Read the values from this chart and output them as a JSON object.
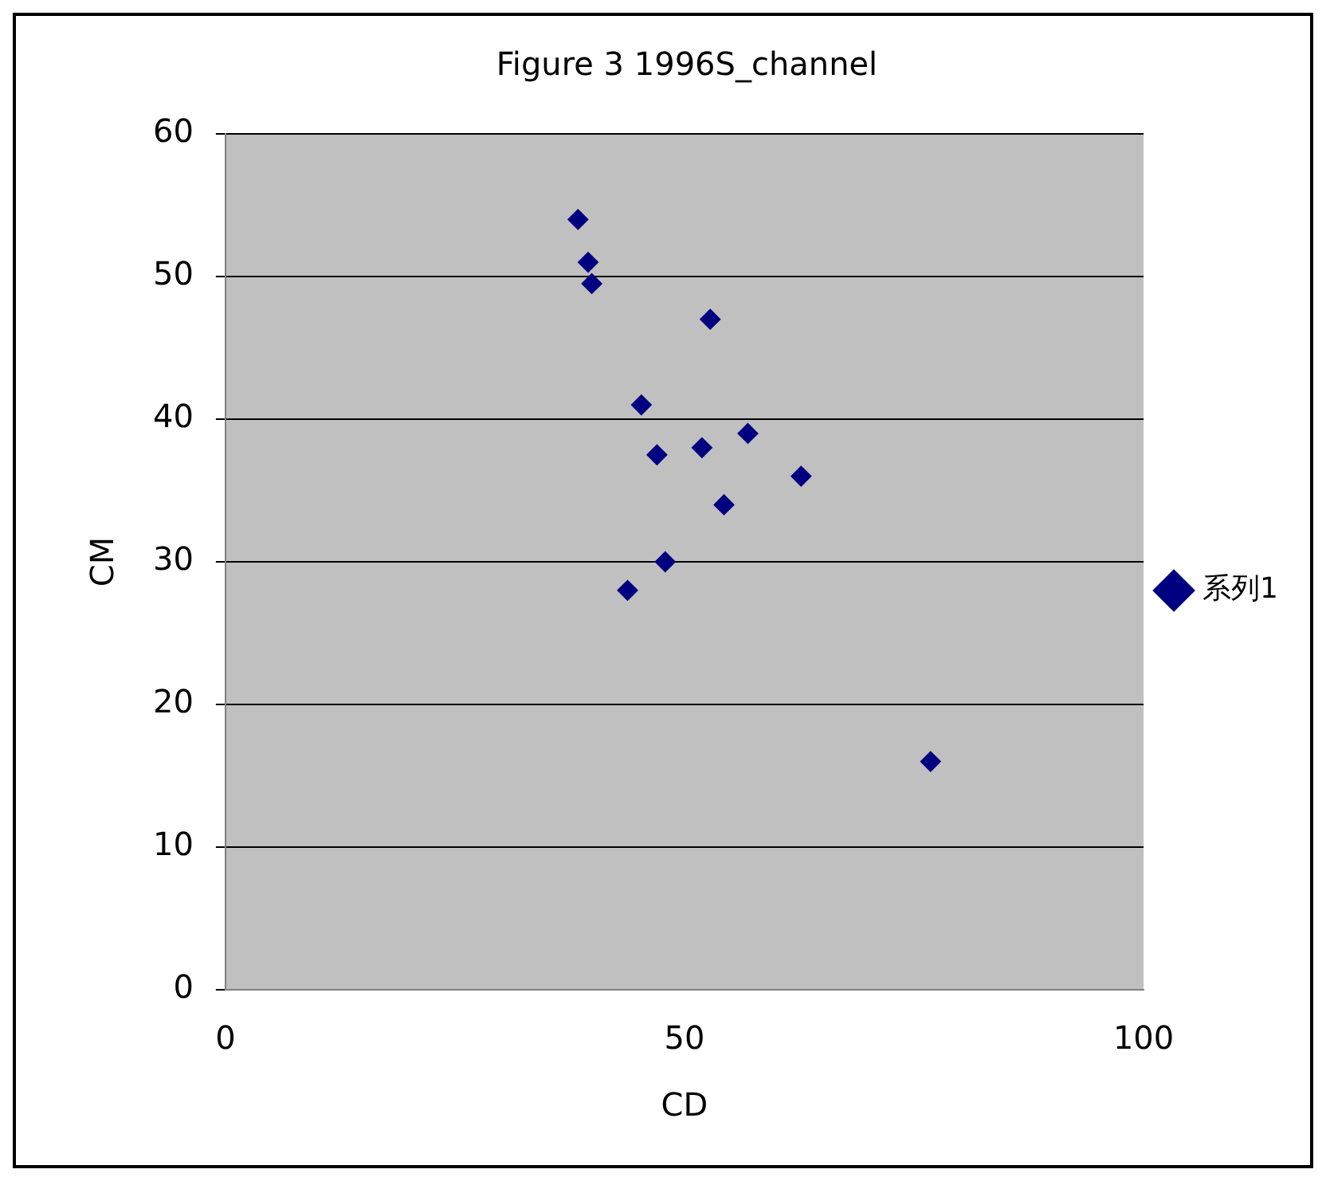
{
  "chart_data": {
    "type": "scatter",
    "title": "Figure 3 1996S_channel",
    "xlabel": "CD",
    "ylabel": "CM",
    "x": [
      38.4,
      39.5,
      39.9,
      52.8,
      45.3,
      47.0,
      51.9,
      56.9,
      62.7,
      54.3,
      47.9,
      43.8,
      76.8
    ],
    "series": [
      {
        "name": "系列1",
        "color": "#000080",
        "values": [
          54,
          51,
          49.5,
          47,
          41,
          37.5,
          38,
          39,
          36,
          34,
          30,
          28,
          16
        ]
      }
    ],
    "xlim": [
      0,
      100
    ],
    "xticks": [
      0,
      50,
      100
    ],
    "ylim": [
      0,
      60
    ],
    "yticks": [
      0,
      10,
      20,
      30,
      40,
      50,
      60
    ],
    "grid": "y",
    "legend": "right",
    "marker": "diamond"
  }
}
